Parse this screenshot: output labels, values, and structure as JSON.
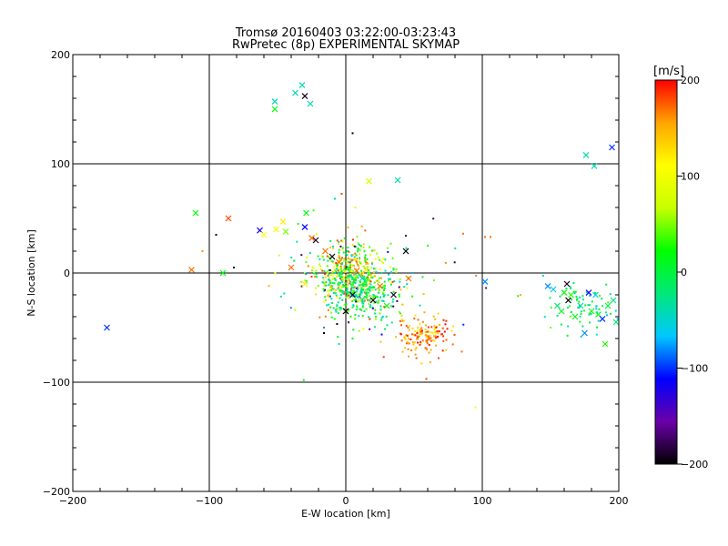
{
  "chart_data": {
    "type": "scatter",
    "title": "Tromsø 20160403 03:22:00-03:23:43",
    "subtitle": "RwPretec (8p) EXPERIMENTAL SKYMAP",
    "xlabel": "E-W location [km]",
    "ylabel": "N-S location [km]",
    "xlim": [
      -200,
      200
    ],
    "ylim": [
      -200,
      200
    ],
    "x_ticks": [
      -200,
      -100,
      0,
      100,
      200
    ],
    "y_ticks": [
      -200,
      -100,
      0,
      100,
      200
    ],
    "grid": true,
    "colorbar": {
      "label": "[m/s]",
      "range": [
        -200,
        200
      ],
      "ticks": [
        200,
        100,
        0,
        -100,
        -200
      ],
      "colors": [
        "#000000",
        "#6a00a8",
        "#0000ff",
        "#00c8ff",
        "#00e87a",
        "#00ff00",
        "#c8ff00",
        "#ffff00",
        "#ffa500",
        "#ff0000"
      ]
    },
    "crosses": [
      {
        "x": -175,
        "y": -50,
        "v": -100
      },
      {
        "x": -113,
        "y": 3,
        "v": 170
      },
      {
        "x": -110,
        "y": 55,
        "v": 20
      },
      {
        "x": -90,
        "y": 0,
        "v": 20
      },
      {
        "x": -86,
        "y": 50,
        "v": 180
      },
      {
        "x": -63,
        "y": 39,
        "v": -120
      },
      {
        "x": -60,
        "y": 35,
        "v": 110
      },
      {
        "x": -52,
        "y": 157,
        "v": -40
      },
      {
        "x": -52,
        "y": 150,
        "v": 20
      },
      {
        "x": -51,
        "y": 40,
        "v": 100
      },
      {
        "x": -46,
        "y": 47,
        "v": 120
      },
      {
        "x": -44,
        "y": 38,
        "v": 50
      },
      {
        "x": -40,
        "y": 5,
        "v": 170
      },
      {
        "x": -37,
        "y": 165,
        "v": -40
      },
      {
        "x": -32,
        "y": 172,
        "v": -40
      },
      {
        "x": -30,
        "y": 162,
        "v": -190
      },
      {
        "x": -30,
        "y": 42,
        "v": -110
      },
      {
        "x": -29,
        "y": 55,
        "v": 20
      },
      {
        "x": -26,
        "y": 155,
        "v": -40
      },
      {
        "x": -25,
        "y": 32,
        "v": 170
      },
      {
        "x": -22,
        "y": 30,
        "v": -190
      },
      {
        "x": -30,
        "y": -10,
        "v": 120
      },
      {
        "x": -15,
        "y": 20,
        "v": 170
      },
      {
        "x": -10,
        "y": 15,
        "v": -200
      },
      {
        "x": -5,
        "y": 10,
        "v": 170
      },
      {
        "x": 2,
        "y": 5,
        "v": 30
      },
      {
        "x": 5,
        "y": -20,
        "v": -190
      },
      {
        "x": 8,
        "y": 2,
        "v": 170
      },
      {
        "x": 12,
        "y": -5,
        "v": -40
      },
      {
        "x": 15,
        "y": 3,
        "v": 120
      },
      {
        "x": 20,
        "y": -25,
        "v": -190
      },
      {
        "x": 25,
        "y": -12,
        "v": 170
      },
      {
        "x": 30,
        "y": -30,
        "v": 20
      },
      {
        "x": 35,
        "y": -20,
        "v": -190
      },
      {
        "x": 17,
        "y": 84,
        "v": 80
      },
      {
        "x": 38,
        "y": 85,
        "v": -40
      },
      {
        "x": 44,
        "y": 20,
        "v": -200
      },
      {
        "x": 46,
        "y": -5,
        "v": 170
      },
      {
        "x": 0,
        "y": -35,
        "v": -200
      },
      {
        "x": 102,
        "y": -8,
        "v": -80
      },
      {
        "x": 148,
        "y": -12,
        "v": -80
      },
      {
        "x": 152,
        "y": -15,
        "v": -60
      },
      {
        "x": 155,
        "y": -30,
        "v": -20
      },
      {
        "x": 158,
        "y": -35,
        "v": 10
      },
      {
        "x": 160,
        "y": -18,
        "v": 20
      },
      {
        "x": 162,
        "y": -10,
        "v": -190
      },
      {
        "x": 163,
        "y": -25,
        "v": -200
      },
      {
        "x": 165,
        "y": -20,
        "v": 30
      },
      {
        "x": 168,
        "y": -40,
        "v": 10
      },
      {
        "x": 172,
        "y": -30,
        "v": -40
      },
      {
        "x": 175,
        "y": -55,
        "v": -80
      },
      {
        "x": 176,
        "y": 108,
        "v": -40
      },
      {
        "x": 178,
        "y": -18,
        "v": -120
      },
      {
        "x": 180,
        "y": -35,
        "v": 20
      },
      {
        "x": 182,
        "y": 98,
        "v": -40
      },
      {
        "x": 183,
        "y": -20,
        "v": -60
      },
      {
        "x": 185,
        "y": -38,
        "v": 10
      },
      {
        "x": 188,
        "y": -42,
        "v": -100
      },
      {
        "x": 190,
        "y": -65,
        "v": 30
      },
      {
        "x": 192,
        "y": -30,
        "v": 0
      },
      {
        "x": 195,
        "y": 115,
        "v": -100
      },
      {
        "x": 196,
        "y": -25,
        "v": -30
      },
      {
        "x": 198,
        "y": -45,
        "v": -20
      }
    ],
    "dot_clusters": [
      {
        "cx": 0,
        "cy": 0,
        "sx": 14,
        "sy": 14,
        "n": 420,
        "vmin": -60,
        "vmax": 200,
        "ring": false
      },
      {
        "cx": 10,
        "cy": -18,
        "sx": 14,
        "sy": 12,
        "n": 260,
        "vmin": -60,
        "vmax": 60,
        "ring": false
      },
      {
        "cx": 57,
        "cy": -57,
        "sx": 10,
        "sy": 8,
        "n": 150,
        "vmin": 120,
        "vmax": 200,
        "ring": false
      },
      {
        "cx": 176,
        "cy": -32,
        "sx": 15,
        "sy": 12,
        "n": 70,
        "vmin": -60,
        "vmax": 40,
        "ring": false
      },
      {
        "cx": 20,
        "cy": -10,
        "sx": 40,
        "sy": 30,
        "n": 80,
        "vmin": -200,
        "vmax": 200,
        "ring": false
      }
    ],
    "single_dots": [
      {
        "x": 5,
        "y": 128,
        "v": -200
      },
      {
        "x": -8,
        "y": 68,
        "v": -40
      },
      {
        "x": 7,
        "y": 60,
        "v": 80
      },
      {
        "x": -95,
        "y": 35,
        "v": -190
      },
      {
        "x": -105,
        "y": 20,
        "v": 160
      },
      {
        "x": -82,
        "y": 5,
        "v": -200
      },
      {
        "x": -35,
        "y": 45,
        "v": 30
      },
      {
        "x": 60,
        "y": 25,
        "v": 30
      },
      {
        "x": 86,
        "y": 36,
        "v": 170
      },
      {
        "x": 102,
        "y": 33,
        "v": 170
      },
      {
        "x": 106,
        "y": 33,
        "v": 170
      },
      {
        "x": 59,
        "y": -97,
        "v": 180
      },
      {
        "x": 68,
        "y": -78,
        "v": 180
      },
      {
        "x": 85,
        "y": -72,
        "v": 170
      },
      {
        "x": 95,
        "y": -123,
        "v": 100
      },
      {
        "x": 128,
        "y": -20,
        "v": 150
      },
      {
        "x": 150,
        "y": -50,
        "v": 50
      },
      {
        "x": -16,
        "y": -50,
        "v": -80
      },
      {
        "x": -16,
        "y": -55,
        "v": -200
      },
      {
        "x": -5,
        "y": -65,
        "v": -40
      },
      {
        "x": 5,
        "y": -60,
        "v": 20
      }
    ]
  }
}
